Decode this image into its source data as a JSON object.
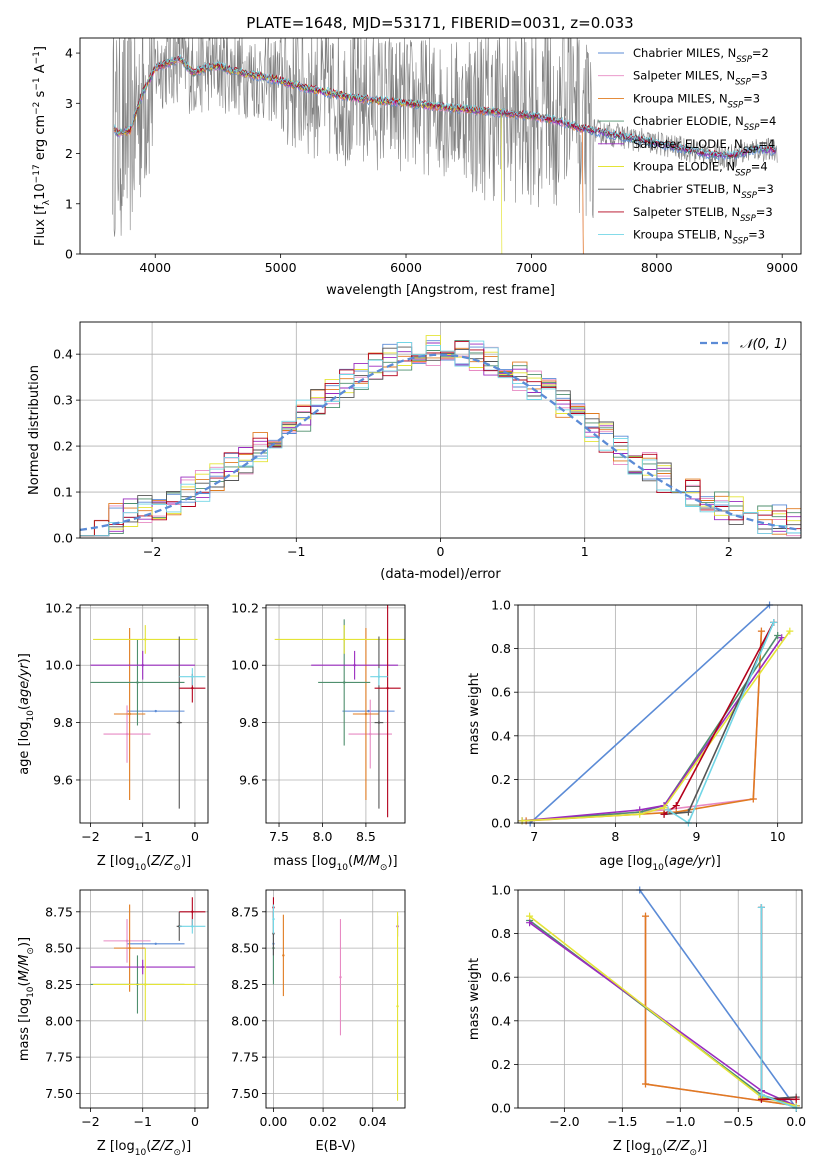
{
  "title": "PLATE=1648, MJD=53171, FIBERID=0031, z=0.033",
  "colors": {
    "Chabrier MILES": "#5b8bd6",
    "Salpeter MILES": "#e78ac3",
    "Kroupa MILES": "#e07b20",
    "Chabrier ELODIE": "#4f8f6e",
    "Salpeter ELODIE": "#9a2bbf",
    "Kroupa ELODIE": "#e4e437",
    "Chabrier STELIB": "#555555",
    "Salpeter STELIB": "#b3001b",
    "Kroupa STELIB": "#72d6e6",
    "data": "#808080",
    "gauss": "#5b8bd6"
  },
  "chart_data": [
    {
      "type": "line",
      "panel": "spectrum",
      "xlabel": "wavelength [Angstrom, rest frame]",
      "ylabel": "Flux [f_λ10^-17 erg cm^-2 s^-1 A^-1]",
      "xlim": [
        3400,
        9150
      ],
      "ylim": [
        0,
        4.3
      ],
      "xticks": [
        4000,
        5000,
        6000,
        7000,
        8000,
        9000
      ],
      "yticks": [
        0,
        1,
        2,
        3,
        4
      ],
      "legend": [
        {
          "name": "Chabrier MILES",
          "N": 2
        },
        {
          "name": "Salpeter MILES",
          "N": 3
        },
        {
          "name": "Kroupa MILES",
          "N": 3
        },
        {
          "name": "Chabrier ELODIE",
          "N": 4
        },
        {
          "name": "Salpeter ELODIE",
          "N": 4
        },
        {
          "name": "Kroupa ELODIE",
          "N": 4
        },
        {
          "name": "Chabrier STELIB",
          "N": 3
        },
        {
          "name": "Salpeter STELIB",
          "N": 3
        },
        {
          "name": "Kroupa STELIB",
          "N": 3
        }
      ],
      "legend_position": "upper right",
      "model_continuum": {
        "x": [
          3650,
          3700,
          3800,
          3900,
          4000,
          4100,
          4200,
          4300,
          4400,
          4500,
          4600,
          4700,
          4800,
          4900,
          5000,
          5200,
          5400,
          5600,
          5800,
          6000,
          6200,
          6400,
          6600,
          6800,
          7000,
          7200,
          7400,
          7600,
          7800,
          8000,
          8200,
          8400,
          8600,
          8800,
          8950
        ],
        "y": [
          2.6,
          2.4,
          2.45,
          3.2,
          3.7,
          3.8,
          3.9,
          3.6,
          3.7,
          3.75,
          3.65,
          3.6,
          3.55,
          3.5,
          3.45,
          3.3,
          3.2,
          3.1,
          3.05,
          3.0,
          2.95,
          2.9,
          2.85,
          2.8,
          2.75,
          2.65,
          2.5,
          2.4,
          2.3,
          2.2,
          2.1,
          2.0,
          1.95,
          2.1,
          2.05
        ]
      }
    },
    {
      "type": "line",
      "panel": "residual-histogram",
      "xlabel": "(data-model)/error",
      "ylabel": "Normed distribution",
      "xlim": [
        -2.5,
        2.5
      ],
      "ylim": [
        0,
        0.47
      ],
      "xticks": [
        -2,
        -1,
        0,
        1,
        2
      ],
      "yticks": [
        0.0,
        0.1,
        0.2,
        0.3,
        0.4
      ],
      "gauss_label": "𝒩(0, 1)",
      "legend_position": "upper right"
    },
    {
      "type": "scatter",
      "panel": "age-vs-Z",
      "xlabel": "Z [log10(Z/Z⊙)]",
      "ylabel": "age [log10(age/yr)]",
      "xlim": [
        -2.2,
        0.25
      ],
      "ylim": [
        9.45,
        10.21
      ],
      "xticks": [
        -2,
        -1,
        0
      ],
      "yticks": [
        9.6,
        9.8,
        10.0,
        10.2
      ],
      "points": [
        {
          "model": "Chabrier MILES",
          "x": -0.75,
          "y": 9.84,
          "xerr": 0.55,
          "yerr": 0.0
        },
        {
          "model": "Salpeter MILES",
          "x": -1.3,
          "y": 9.76,
          "xerr": 0.45,
          "yerr": 0.1
        },
        {
          "model": "Kroupa MILES",
          "x": -1.25,
          "y": 9.83,
          "xerr": 0.3,
          "yerr": 0.3
        },
        {
          "model": "Chabrier ELODIE",
          "x": -1.1,
          "y": 9.94,
          "xerr": 0.9,
          "yerr": 0.15
        },
        {
          "model": "Salpeter ELODIE",
          "x": -1.0,
          "y": 10.0,
          "xerr": 1.0,
          "yerr": 0.05
        },
        {
          "model": "Kroupa ELODIE",
          "x": -0.95,
          "y": 10.09,
          "xerr": 1.0,
          "yerr": 0.05
        },
        {
          "model": "Chabrier STELIB",
          "x": -0.3,
          "y": 9.8,
          "xerr": 0.05,
          "yerr": 0.3
        },
        {
          "model": "Salpeter STELIB",
          "x": -0.05,
          "y": 9.92,
          "xerr": 0.25,
          "yerr": 0.05
        },
        {
          "model": "Kroupa STELIB",
          "x": -0.05,
          "y": 9.96,
          "xerr": 0.25,
          "yerr": 0.03
        }
      ]
    },
    {
      "type": "scatter",
      "panel": "age-vs-mass",
      "xlabel": "mass [log10(M/M⊙)]",
      "ylabel": "",
      "xlim": [
        7.35,
        8.95
      ],
      "ylim": [
        9.45,
        10.21
      ],
      "xticks": [
        7.5,
        8.0,
        8.5
      ],
      "yticks": [
        9.6,
        9.8,
        10.0,
        10.2
      ],
      "points": [
        {
          "model": "Chabrier MILES",
          "x": 8.53,
          "y": 9.84,
          "xerr": 0.3,
          "yerr": 0.0
        },
        {
          "model": "Salpeter MILES",
          "x": 8.55,
          "y": 9.76,
          "xerr": 0.25,
          "yerr": 0.12
        },
        {
          "model": "Kroupa MILES",
          "x": 8.5,
          "y": 9.83,
          "xerr": 0.15,
          "yerr": 0.3
        },
        {
          "model": "Chabrier ELODIE",
          "x": 8.25,
          "y": 9.94,
          "xerr": 0.3,
          "yerr": 0.22
        },
        {
          "model": "Salpeter ELODIE",
          "x": 8.37,
          "y": 10.0,
          "xerr": 0.5,
          "yerr": 0.05
        },
        {
          "model": "Kroupa ELODIE",
          "x": 8.25,
          "y": 10.09,
          "xerr": 0.8,
          "yerr": 0.05
        },
        {
          "model": "Chabrier STELIB",
          "x": 8.65,
          "y": 9.8,
          "xerr": 0.05,
          "yerr": 0.3
        },
        {
          "model": "Salpeter STELIB",
          "x": 8.75,
          "y": 9.92,
          "xerr": 0.15,
          "yerr": 0.45
        },
        {
          "model": "Kroupa STELIB",
          "x": 8.65,
          "y": 9.96,
          "xerr": 0.1,
          "yerr": 0.03
        }
      ]
    },
    {
      "type": "line",
      "panel": "mass-weight-vs-age",
      "xlabel": "age [log10(age/yr)]",
      "ylabel": "mass weight",
      "xlim": [
        6.8,
        10.3
      ],
      "ylim": [
        0,
        1
      ],
      "xticks": [
        7,
        8,
        9,
        10
      ],
      "yticks": [
        0.0,
        0.2,
        0.4,
        0.6,
        0.8,
        1.0
      ],
      "series": [
        {
          "name": "Chabrier MILES",
          "x": [
            6.95,
            9.9
          ],
          "y": [
            0.0,
            1.0
          ]
        },
        {
          "name": "Salpeter MILES",
          "x": [
            6.9,
            8.6,
            9.7,
            9.8
          ],
          "y": [
            0.01,
            0.06,
            0.11,
            0.88
          ]
        },
        {
          "name": "Kroupa MILES",
          "x": [
            6.9,
            8.75,
            9.7,
            9.8
          ],
          "y": [
            0.01,
            0.05,
            0.11,
            0.88
          ]
        },
        {
          "name": "Chabrier ELODIE",
          "x": [
            6.85,
            8.3,
            8.6,
            10.0
          ],
          "y": [
            0.01,
            0.05,
            0.08,
            0.86
          ]
        },
        {
          "name": "Salpeter ELODIE",
          "x": [
            6.85,
            8.3,
            8.6,
            10.05
          ],
          "y": [
            0.01,
            0.06,
            0.08,
            0.85
          ]
        },
        {
          "name": "Kroupa ELODIE",
          "x": [
            6.85,
            8.3,
            8.6,
            10.15
          ],
          "y": [
            0.01,
            0.04,
            0.07,
            0.88
          ]
        },
        {
          "name": "Chabrier STELIB",
          "x": [
            8.6,
            8.9,
            9.95
          ],
          "y": [
            0.04,
            0.05,
            0.92
          ]
        },
        {
          "name": "Salpeter STELIB",
          "x": [
            8.6,
            8.75,
            9.95
          ],
          "y": [
            0.04,
            0.08,
            0.92
          ]
        },
        {
          "name": "Kroupa STELIB",
          "x": [
            8.65,
            8.9,
            9.95
          ],
          "y": [
            0.06,
            0.0,
            0.92
          ]
        }
      ]
    },
    {
      "type": "scatter",
      "panel": "mass-vs-Z",
      "xlabel": "Z [log10(Z/Z⊙)]",
      "ylabel": "mass [log10(M/M⊙)]",
      "xlim": [
        -2.2,
        0.25
      ],
      "ylim": [
        7.4,
        8.9
      ],
      "xticks": [
        -2,
        -1,
        0
      ],
      "yticks": [
        7.5,
        7.75,
        8.0,
        8.25,
        8.5,
        8.75
      ],
      "points": [
        {
          "model": "Chabrier MILES",
          "x": -0.75,
          "y": 8.53,
          "xerr": 0.55,
          "yerr": 0.0
        },
        {
          "model": "Salpeter MILES",
          "x": -1.3,
          "y": 8.55,
          "xerr": 0.45,
          "yerr": 0.15
        },
        {
          "model": "Kroupa MILES",
          "x": -1.25,
          "y": 8.5,
          "xerr": 0.3,
          "yerr": 0.3
        },
        {
          "model": "Chabrier ELODIE",
          "x": -1.1,
          "y": 8.25,
          "xerr": 0.9,
          "yerr": 0.2
        },
        {
          "model": "Salpeter ELODIE",
          "x": -1.0,
          "y": 8.37,
          "xerr": 1.0,
          "yerr": 0.05
        },
        {
          "model": "Kroupa ELODIE",
          "x": -0.95,
          "y": 8.25,
          "xerr": 1.0,
          "yerr": 0.25
        },
        {
          "model": "Chabrier STELIB",
          "x": -0.3,
          "y": 8.65,
          "xerr": 0.05,
          "yerr": 0.1
        },
        {
          "model": "Salpeter STELIB",
          "x": -0.05,
          "y": 8.75,
          "xerr": 0.25,
          "yerr": 0.1
        },
        {
          "model": "Kroupa STELIB",
          "x": -0.05,
          "y": 8.65,
          "xerr": 0.25,
          "yerr": 0.05
        }
      ]
    },
    {
      "type": "scatter",
      "panel": "mass-vs-EBV",
      "xlabel": "E(B-V)",
      "ylabel": "",
      "xlim": [
        -0.003,
        0.053
      ],
      "ylim": [
        7.4,
        8.9
      ],
      "xticks": [
        0.0,
        0.02,
        0.04
      ],
      "yticks": [
        7.5,
        7.75,
        8.0,
        8.25,
        8.5,
        8.75
      ],
      "points": [
        {
          "model": "Chabrier MILES",
          "x": 0.0,
          "y": 8.53,
          "yerr": 0.25
        },
        {
          "model": "Salpeter MILES",
          "x": 0.027,
          "y": 8.3,
          "yerr": 0.4
        },
        {
          "model": "Kroupa MILES",
          "x": 0.004,
          "y": 8.45,
          "yerr": 0.28
        },
        {
          "model": "Chabrier ELODIE",
          "x": 0.0,
          "y": 8.5,
          "yerr": 0.25
        },
        {
          "model": "Salpeter ELODIE",
          "x": 0.05,
          "y": 8.65,
          "yerr": 0.07
        },
        {
          "model": "Kroupa ELODIE",
          "x": 0.05,
          "y": 8.1,
          "yerr": 0.65
        },
        {
          "model": "Chabrier STELIB",
          "x": 0.0,
          "y": 8.6,
          "yerr": 0.15
        },
        {
          "model": "Salpeter STELIB",
          "x": 0.0,
          "y": 8.78,
          "yerr": 0.07
        },
        {
          "model": "Kroupa STELIB",
          "x": 0.0,
          "y": 8.7,
          "yerr": 0.1
        }
      ]
    },
    {
      "type": "line",
      "panel": "mass-weight-vs-Z",
      "xlabel": "Z [log10(Z/Z⊙)]",
      "ylabel": "mass weight",
      "xlim": [
        -2.4,
        0.05
      ],
      "ylim": [
        0,
        1
      ],
      "xticks": [
        -2.0,
        -1.5,
        -1.0,
        -0.5,
        0.0
      ],
      "yticks": [
        0.0,
        0.2,
        0.4,
        0.6,
        0.8,
        1.0
      ],
      "series": [
        {
          "name": "Chabrier MILES",
          "x": [
            -1.35,
            0.0
          ],
          "y": [
            1.0,
            0.0
          ]
        },
        {
          "name": "Salpeter MILES",
          "x": [
            -1.3,
            -1.3,
            0.0
          ],
          "y": [
            0.88,
            0.11,
            0.01
          ]
        },
        {
          "name": "Kroupa MILES",
          "x": [
            -1.3,
            -1.3,
            0.0
          ],
          "y": [
            0.88,
            0.11,
            0.01
          ]
        },
        {
          "name": "Chabrier ELODIE",
          "x": [
            -2.3,
            -0.3,
            0.0
          ],
          "y": [
            0.86,
            0.06,
            0.01
          ]
        },
        {
          "name": "Salpeter ELODIE",
          "x": [
            -2.3,
            -0.3,
            0.0
          ],
          "y": [
            0.85,
            0.08,
            0.01
          ]
        },
        {
          "name": "Kroupa ELODIE",
          "x": [
            -2.3,
            -0.3,
            0.0
          ],
          "y": [
            0.88,
            0.05,
            0.01
          ]
        },
        {
          "name": "Chabrier STELIB",
          "x": [
            -0.3,
            -0.3,
            0.0
          ],
          "y": [
            0.92,
            0.04,
            0.05
          ]
        },
        {
          "name": "Salpeter STELIB",
          "x": [
            -0.3,
            -0.3,
            0.0
          ],
          "y": [
            0.92,
            0.04,
            0.04
          ]
        },
        {
          "name": "Kroupa STELIB",
          "x": [
            -0.3,
            -0.3,
            0.0
          ],
          "y": [
            0.92,
            0.06,
            0.0
          ]
        }
      ]
    }
  ]
}
